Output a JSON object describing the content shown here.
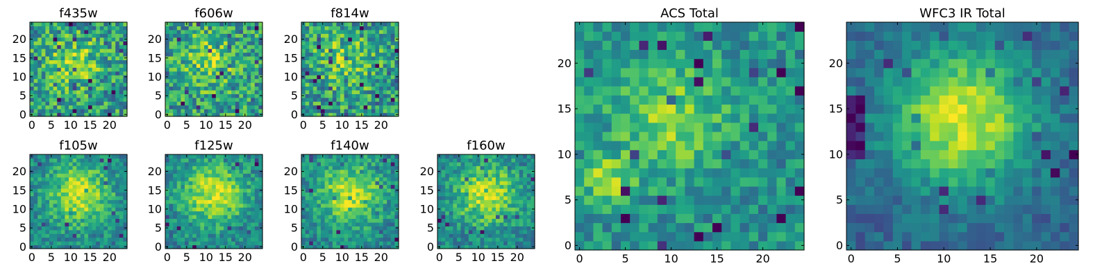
{
  "chart_data": [
    {
      "type": "heatmap",
      "title": "f435w",
      "x_ticks": [
        0,
        5,
        10,
        15,
        20
      ],
      "y_ticks": [
        0,
        5,
        10,
        15,
        20
      ],
      "xlim": [
        -0.5,
        24.5
      ],
      "ylim": [
        -0.5,
        24.5
      ],
      "grid_size": [
        25,
        25
      ],
      "colormap": "viridis",
      "pattern": "noisy",
      "values": []
    },
    {
      "type": "heatmap",
      "title": "f606w",
      "x_ticks": [
        0,
        5,
        10,
        15,
        20
      ],
      "y_ticks": [
        0,
        5,
        10,
        15,
        20
      ],
      "xlim": [
        -0.5,
        24.5
      ],
      "ylim": [
        -0.5,
        24.5
      ],
      "grid_size": [
        25,
        25
      ],
      "colormap": "viridis",
      "pattern": "noisy",
      "values": []
    },
    {
      "type": "heatmap",
      "title": "f814w",
      "x_ticks": [
        0,
        5,
        10,
        15,
        20
      ],
      "y_ticks": [
        0,
        5,
        10,
        15,
        20
      ],
      "xlim": [
        -0.5,
        24.5
      ],
      "ylim": [
        -0.5,
        24.5
      ],
      "grid_size": [
        25,
        25
      ],
      "colormap": "viridis",
      "pattern": "noisy",
      "values": []
    },
    {
      "type": "heatmap",
      "title": "f105w",
      "x_ticks": [
        0,
        5,
        10,
        15,
        20
      ],
      "y_ticks": [
        0,
        5,
        10,
        15,
        20
      ],
      "xlim": [
        -0.5,
        24.5
      ],
      "ylim": [
        -0.5,
        24.5
      ],
      "grid_size": [
        25,
        25
      ],
      "colormap": "viridis",
      "pattern": "centered blob",
      "values": []
    },
    {
      "type": "heatmap",
      "title": "f125w",
      "x_ticks": [
        0,
        5,
        10,
        15,
        20
      ],
      "y_ticks": [
        0,
        5,
        10,
        15,
        20
      ],
      "xlim": [
        -0.5,
        24.5
      ],
      "ylim": [
        -0.5,
        24.5
      ],
      "grid_size": [
        25,
        25
      ],
      "colormap": "viridis",
      "pattern": "centered blob",
      "values": []
    },
    {
      "type": "heatmap",
      "title": "f140w",
      "x_ticks": [
        0,
        5,
        10,
        15,
        20
      ],
      "y_ticks": [
        0,
        5,
        10,
        15,
        20
      ],
      "xlim": [
        -0.5,
        24.5
      ],
      "ylim": [
        -0.5,
        24.5
      ],
      "grid_size": [
        25,
        25
      ],
      "colormap": "viridis",
      "pattern": "centered blob",
      "values": []
    },
    {
      "type": "heatmap",
      "title": "f160w",
      "x_ticks": [
        0,
        5,
        10,
        15,
        20
      ],
      "y_ticks": [
        0,
        5,
        10,
        15,
        20
      ],
      "xlim": [
        -0.5,
        24.5
      ],
      "ylim": [
        -0.5,
        24.5
      ],
      "grid_size": [
        25,
        25
      ],
      "colormap": "viridis",
      "pattern": "centered blob",
      "values": []
    },
    {
      "type": "heatmap",
      "title": "ACS Total",
      "x_ticks": [
        0,
        5,
        10,
        15,
        20
      ],
      "y_ticks": [
        0,
        5,
        10,
        15,
        20
      ],
      "xlim": [
        -0.5,
        24.5
      ],
      "ylim": [
        -0.5,
        24.5
      ],
      "grid_size": [
        25,
        25
      ],
      "colormap": "viridis",
      "pattern": "noisy, bright patches at (3,7) and (10,14)",
      "values": []
    },
    {
      "type": "heatmap",
      "title": "WFC3 IR Total",
      "x_ticks": [
        0,
        5,
        10,
        15,
        20
      ],
      "y_ticks": [
        0,
        5,
        10,
        15,
        20
      ],
      "xlim": [
        -0.5,
        24.5
      ],
      "ylim": [
        -0.5,
        24.5
      ],
      "grid_size": [
        25,
        25
      ],
      "colormap": "viridis",
      "pattern": "smooth bright blob centered near (12,14)",
      "values": []
    }
  ]
}
